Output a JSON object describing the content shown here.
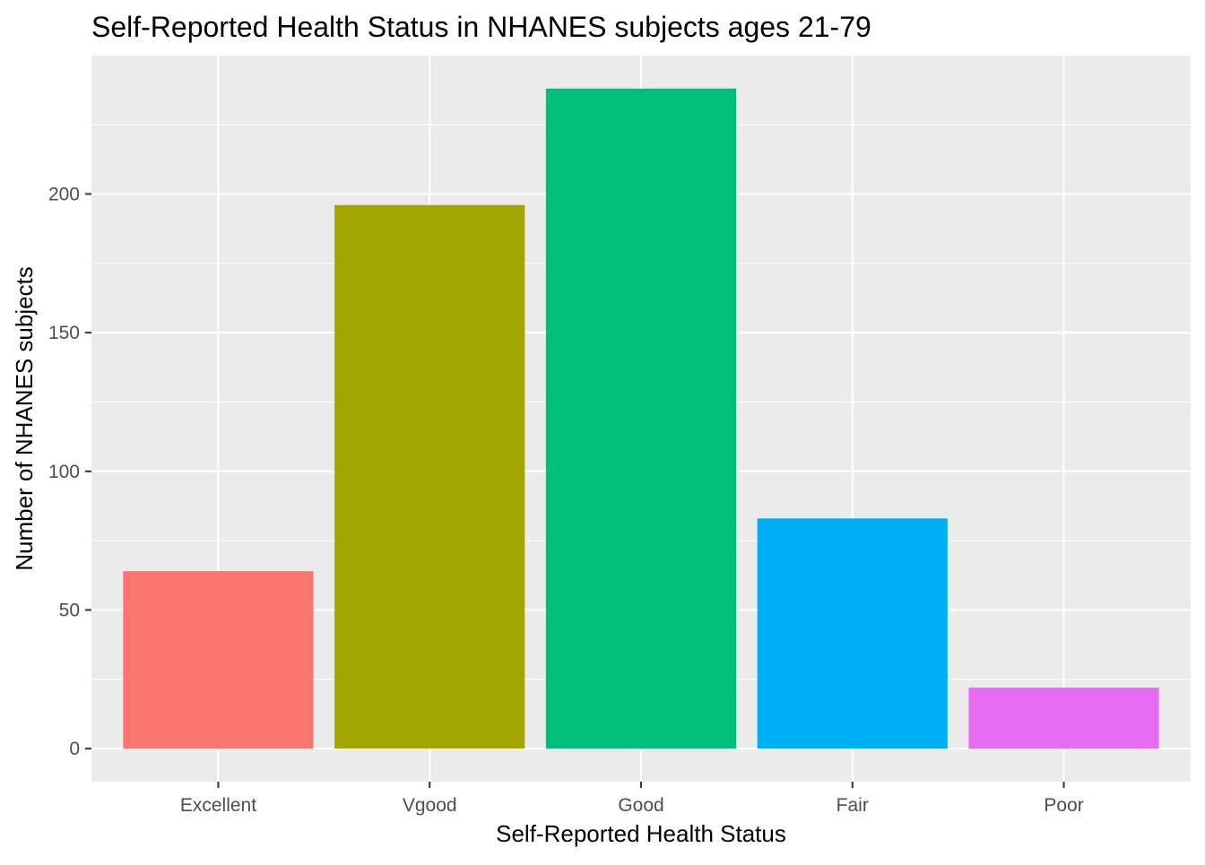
{
  "chart_data": {
    "type": "bar",
    "title": "Self-Reported Health Status in NHANES subjects ages 21-79",
    "xlabel": "Self-Reported Health Status",
    "ylabel": "Number of NHANES subjects",
    "categories": [
      "Excellent",
      "Vgood",
      "Good",
      "Fair",
      "Poor"
    ],
    "values": [
      64,
      196,
      238,
      83,
      22
    ],
    "colors": [
      "#F8766D",
      "#A3A500",
      "#00BF7D",
      "#00B0F6",
      "#E76BF3"
    ],
    "yticks": [
      0,
      50,
      100,
      150,
      200
    ],
    "ylim": [
      -11.9,
      249.9
    ],
    "grid": true,
    "legend": "none",
    "panel_background": "#EBEBEB",
    "grid_color": "#FFFFFF"
  }
}
